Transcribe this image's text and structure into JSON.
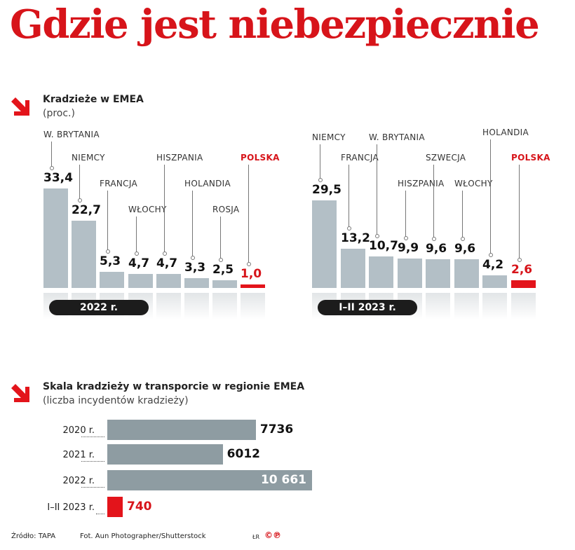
{
  "title": "Gdzie jest niebezpiecznie",
  "colors": {
    "accent": "#d7141a",
    "bar": "#b3bfc6",
    "hbar": "#8e9ca2"
  },
  "chart_data": [
    {
      "type": "bar",
      "title": "Kradzieże w EMEA",
      "subtitle": "(proc.)",
      "period": "2022 r.",
      "categories": [
        "W. BRYTANIA",
        "NIEMCY",
        "FRANCJA",
        "WŁOCHY",
        "HISZPANIA",
        "HOLANDIA",
        "ROSJA",
        "POLSKA"
      ],
      "values": [
        33.4,
        22.7,
        5.3,
        4.7,
        4.7,
        3.3,
        2.5,
        1.0
      ],
      "value_labels": [
        "33,4",
        "22,7",
        "5,3",
        "4,7",
        "4,7",
        "3,3",
        "2,5",
        "1,0"
      ],
      "highlight": "POLSKA"
    },
    {
      "type": "bar",
      "period": "I–II 2023 r.",
      "categories": [
        "NIEMCY",
        "FRANCJA",
        "W. BRYTANIA",
        "HISZPANIA",
        "SZWECJA",
        "WŁOCHY",
        "HOLANDIA",
        "POLSKA"
      ],
      "values": [
        29.5,
        13.2,
        10.7,
        9.9,
        9.6,
        9.6,
        4.2,
        2.6
      ],
      "value_labels": [
        "29,5",
        "13,2",
        "10,7",
        "9,9",
        "9,6",
        "9,6",
        "4,2",
        "2,6"
      ],
      "highlight": "POLSKA"
    },
    {
      "type": "bar",
      "orientation": "horizontal",
      "title": "Skala kradzieży w transporcie w regionie EMEA",
      "subtitle": "(liczba incydentów kradzieży)",
      "categories": [
        "2020 r.",
        "2021 r.",
        "2022 r.",
        "I–II 2023 r."
      ],
      "values": [
        7736,
        6012,
        10661,
        740
      ],
      "value_labels": [
        "7736",
        "6012",
        "10 661",
        "740"
      ],
      "highlight": "I–II 2023 r."
    }
  ],
  "footer": {
    "source": "Źródło: TAPA",
    "photo": "Fot. Aun Photographer/Shutterstock",
    "author": "ŁR",
    "logo": "©℗"
  }
}
